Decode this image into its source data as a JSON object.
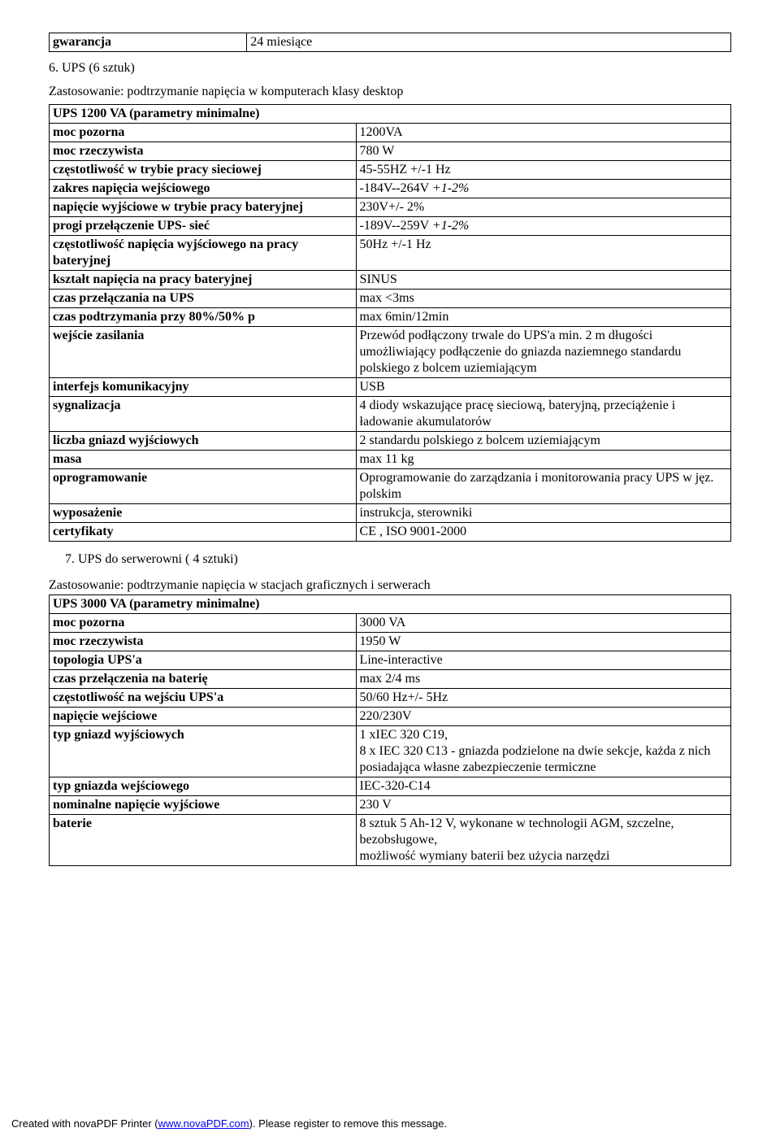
{
  "top_table": {
    "label": "gwarancja",
    "value": "24 miesiące"
  },
  "section6": {
    "heading": "6. UPS (6 sztuk)",
    "subheading": "Zastosowanie: podtrzymanie napięcia w komputerach klasy desktop",
    "table_header": "UPS 1200 VA (parametry minimalne)",
    "rows": [
      {
        "k": "moc pozorna",
        "v": "1200VA"
      },
      {
        "k": "moc rzeczywista",
        "v": "780 W"
      },
      {
        "k": "częstotliwość w trybie pracy sieciowej",
        "v": "45-55HZ +/-1 Hz"
      },
      {
        "k": "zakres napięcia wejściowego",
        "v": "-184V--264V +1-2%",
        "vi": true
      },
      {
        "k": "napięcie wyjściowe w trybie pracy bateryjnej",
        "v": "230V+/- 2%"
      },
      {
        "k": "progi przełączenie UPS- sieć",
        "v": "-189V--259V +1-2%",
        "vi": true
      },
      {
        "k": "częstotliwość napięcia wyjściowego na pracy bateryjnej",
        "v": "50Hz +/-1 Hz"
      },
      {
        "k": "kształt napięcia na pracy bateryjnej",
        "v": "SINUS"
      },
      {
        "k": "czas przełączania na UPS",
        "v": "max <3ms"
      },
      {
        "k": "czas podtrzymania przy 80%/50% p",
        "v": "max 6min/12min"
      },
      {
        "k": "wejście zasilania",
        "v": "Przewód podłączony trwale do UPS'a min. 2 m długości umożliwiający podłączenie do gniazda naziemnego standardu polskiego z bolcem uziemiającym"
      },
      {
        "k": "interfejs komunikacyjny",
        "v": "USB"
      },
      {
        "k": "sygnalizacja",
        "v": "4 diody wskazujące pracę sieciową, bateryjną, przeciążenie i ładowanie akumulatorów"
      },
      {
        "k": "liczba gniazd wyjściowych",
        "v": "2 standardu polskiego z bolcem uziemiającym"
      },
      {
        "k": "masa",
        "v": "max 11 kg"
      },
      {
        "k": "oprogramowanie",
        "v": "Oprogramowanie do zarządzania i monitorowania pracy UPS w jęz. polskim"
      },
      {
        "k": "wyposażenie",
        "v": "instrukcja, sterowniki"
      },
      {
        "k": "certyfikaty",
        "v": "CE , ISO 9001-2000"
      }
    ]
  },
  "section7": {
    "heading": "7. UPS do serwerowni ( 4 sztuki)",
    "subheading": "Zastosowanie: podtrzymanie napięcia w stacjach graficznych i serwerach",
    "table_header": "UPS 3000 VA (parametry minimalne)",
    "rows": [
      {
        "k": "moc pozorna",
        "v": "3000 VA"
      },
      {
        "k": "moc rzeczywista",
        "v": "1950 W"
      },
      {
        "k": "topologia UPS'a",
        "v": "Line-interactive"
      },
      {
        "k": "czas przełączenia na baterię",
        "v": "max 2/4 ms"
      },
      {
        "k": "częstotliwość na wejściu UPS'a",
        "v": "50/60 Hz+/- 5Hz"
      },
      {
        "k": "napięcie wejściowe",
        "v": "220/230V"
      },
      {
        "k": "typ gniazd wyjściowych",
        "v": "1 xIEC 320 C19,\n8 x IEC 320 C13 - gniazda podzielone na dwie sekcje, każda z nich posiadająca własne zabezpieczenie termiczne"
      },
      {
        "k": "typ gniazda wejściowego",
        "v": "IEC-320-C14"
      },
      {
        "k": "nominalne napięcie wyjściowe",
        "v": "230 V"
      },
      {
        "k": "baterie",
        "v": "8 sztuk 5 Ah-12 V, wykonane w technologii AGM, szczelne, bezobsługowe,\nmożliwość wymiany baterii bez użycia narzędzi"
      }
    ]
  },
  "footer": {
    "prefix": "Created with novaPDF Printer (",
    "link_text": "www.novaPDF.com",
    "suffix": "). Please register to remove this message."
  }
}
